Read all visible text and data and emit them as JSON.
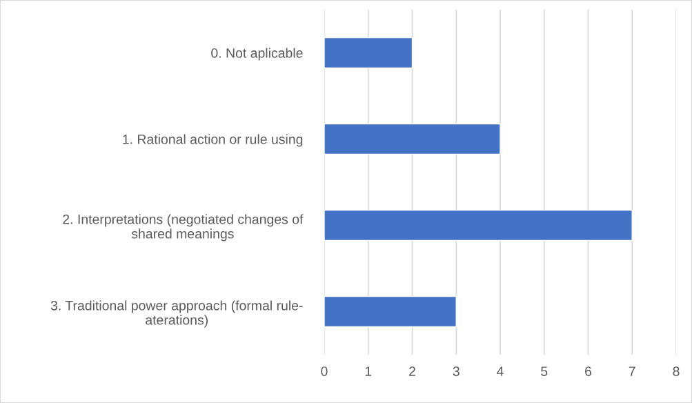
{
  "chart_data": {
    "type": "bar",
    "orientation": "horizontal",
    "categories": [
      "0. Not aplicable",
      "1. Rational action or rule using",
      "2. Interpretations (negotiated changes of\nshared meanings",
      "3. Traditional power approach (formal rule-\naterations)"
    ],
    "values": [
      2,
      4,
      7,
      3
    ],
    "color": "#4472c4",
    "xlim": [
      0,
      8
    ],
    "xticks": [
      0,
      1,
      2,
      3,
      4,
      5,
      6,
      7,
      8
    ],
    "grid": "x",
    "legend": false
  }
}
